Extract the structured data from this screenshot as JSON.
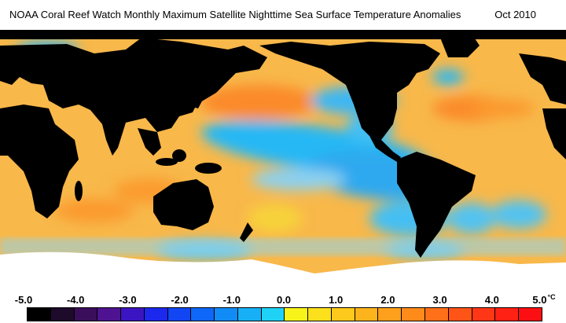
{
  "header": {
    "title": "NOAA Coral Reef Watch Monthly Maximum Satellite Nighttime Sea Surface Temperature Anomalies",
    "date": "Oct 2010"
  },
  "colors": {
    "land": "#000000",
    "ice": "#ffffff",
    "warm_anomaly": "#ffae30",
    "cool_anomaly": "#25b6f5"
  },
  "legend": {
    "unit": "°C",
    "labels": [
      "-5.0",
      "-4.0",
      "-3.0",
      "-2.0",
      "-1.0",
      "0.0",
      "1.0",
      "2.0",
      "3.0",
      "4.0",
      "5.0"
    ],
    "swatches": [
      "#000000",
      "#1e0b2b",
      "#3b0e5b",
      "#4f1391",
      "#3c15c2",
      "#1c28ee",
      "#1246f3",
      "#0f67f7",
      "#118cf7",
      "#17b0f6",
      "#1fd2f5",
      "#f8f41a",
      "#fbe01b",
      "#fcc91c",
      "#fdb41c",
      "#fea01b",
      "#fe8b1a",
      "#ff7019",
      "#ff5417",
      "#ff3716",
      "#ff2114",
      "#fc0f12"
    ]
  }
}
